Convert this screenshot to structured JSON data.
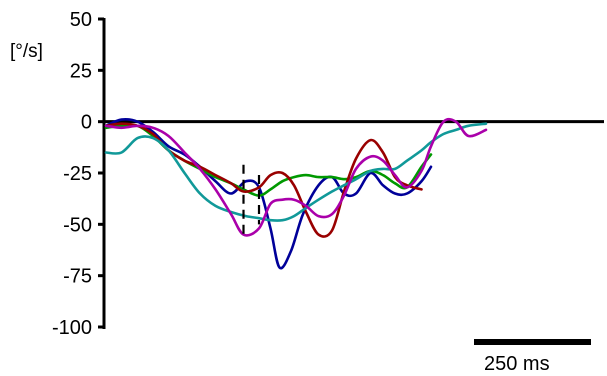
{
  "chart_data": {
    "type": "line",
    "title": "",
    "xlabel": "",
    "ylabel": "[°/s]",
    "ylim": [
      -100,
      50
    ],
    "yticks": [
      50,
      25,
      0,
      -25,
      -50,
      -75,
      -100
    ],
    "ytick_labels": [
      "50",
      "25",
      "0",
      "-25",
      "-50",
      "-75",
      "-100"
    ],
    "x_unit": "ms",
    "scale_bar": {
      "label": "250 ms",
      "length_ms": 250
    },
    "zero_line": true,
    "grid": false,
    "legend": "none",
    "markers": [
      {
        "style": "dashed-vertical",
        "x": 275,
        "y_from": -21,
        "y_to": -55
      },
      {
        "style": "dashed-vertical",
        "x": 306,
        "y_from": -26,
        "y_to": -50
      }
    ],
    "series": [
      {
        "color": "#000099",
        "x": [
          0,
          31,
          63,
          94,
          125,
          157,
          188,
          219,
          250,
          280,
          306,
          329,
          347,
          370,
          394,
          425,
          452,
          476,
          500,
          529,
          554,
          578,
          602,
          631,
          650
        ],
        "y": [
          -2,
          1,
          0,
          -5,
          -12,
          -16,
          -22,
          -29,
          -35,
          -29,
          -32,
          -52,
          -71,
          -63,
          -45,
          -31,
          -27,
          -35,
          -35,
          -25,
          -31,
          -35,
          -35,
          -29,
          -22
        ]
      },
      {
        "color": "#009900",
        "x": [
          0,
          31,
          63,
          94,
          125,
          157,
          188,
          219,
          250,
          275,
          306,
          329,
          353,
          376,
          400,
          425,
          452,
          476,
          500,
          529,
          554,
          578,
          602,
          631,
          650
        ],
        "y": [
          -3,
          -2,
          -2,
          -7,
          -14,
          -19,
          -23,
          -27,
          -30,
          -33,
          -36,
          -33,
          -29,
          -27,
          -26,
          -27,
          -27,
          -28,
          -27,
          -24,
          -26,
          -30,
          -32,
          -22,
          -16
        ]
      },
      {
        "color": "#990000",
        "x": [
          0,
          31,
          63,
          94,
          125,
          157,
          188,
          219,
          250,
          275,
          306,
          329,
          353,
          376,
          400,
          425,
          452,
          476,
          500,
          529,
          554,
          578,
          602,
          631
        ],
        "y": [
          -2,
          -1,
          -2,
          -6,
          -14,
          -19,
          -22,
          -26,
          -30,
          -34,
          -32,
          -26,
          -25,
          -31,
          -44,
          -55,
          -53,
          -34,
          -18,
          -9,
          -15,
          -27,
          -31,
          -33
        ]
      },
      {
        "color": "#119999",
        "x": [
          0,
          31,
          63,
          94,
          125,
          157,
          188,
          219,
          250,
          280,
          306,
          329,
          353,
          376,
          400,
          425,
          452,
          476,
          500,
          529,
          554,
          578,
          602,
          631,
          650,
          675,
          700,
          725,
          760
        ],
        "y": [
          -15,
          -15,
          -8,
          -8,
          -14,
          -25,
          -35,
          -41,
          -44,
          -46,
          -47,
          -48,
          -48,
          -46,
          -42,
          -38,
          -34,
          -31,
          -28,
          -24,
          -23,
          -23,
          -19,
          -14,
          -10,
          -6,
          -4,
          -2,
          -1
        ]
      },
      {
        "color": "#aa00aa",
        "x": [
          0,
          31,
          63,
          94,
          125,
          157,
          188,
          219,
          250,
          275,
          306,
          329,
          353,
          376,
          400,
          425,
          452,
          476,
          500,
          529,
          554,
          578,
          602,
          631,
          650,
          675,
          700,
          725,
          760
        ],
        "y": [
          -2,
          -3,
          -2,
          -3,
          -7,
          -15,
          -23,
          -33,
          -45,
          -55,
          -52,
          -40,
          -38,
          -38,
          -41,
          -46,
          -45,
          -36,
          -23,
          -17,
          -19,
          -26,
          -32,
          -24,
          -12,
          0,
          0,
          -7,
          -4
        ]
      }
    ]
  }
}
